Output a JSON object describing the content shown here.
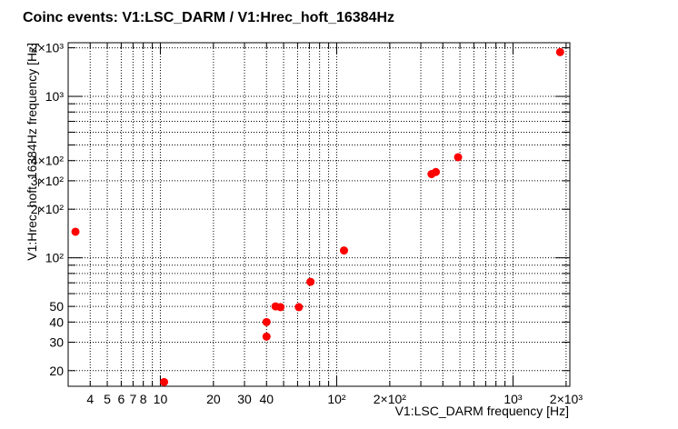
{
  "chart_data": {
    "type": "scatter",
    "title": "Coinc events: V1:LSC_DARM / V1:Hrec_hoft_16384Hz",
    "xlabel": "V1:LSC_DARM frequency [Hz]",
    "ylabel": "V1:Hrec_hoft_16384Hz frequency [Hz]",
    "xscale": "log",
    "yscale": "log",
    "xlim": [
      3.0,
      2100
    ],
    "ylim": [
      16,
      2150
    ],
    "grid": true,
    "x_tick_labels": [
      "4",
      "5",
      "6",
      "7",
      "8",
      "10",
      "20",
      "30",
      "40",
      "10²",
      "2×10²",
      "10³",
      "2×10³"
    ],
    "y_tick_labels": [
      "20",
      "30",
      "40",
      "50",
      "10²",
      "2×10²",
      "3×10²",
      "4×10²",
      "10³",
      "2×10³"
    ],
    "point_color": "#ff0000",
    "points": [
      {
        "x": 3.3,
        "y": 145
      },
      {
        "x": 10.5,
        "y": 17
      },
      {
        "x": 40,
        "y": 40
      },
      {
        "x": 40,
        "y": 32.5
      },
      {
        "x": 45,
        "y": 50
      },
      {
        "x": 48,
        "y": 49.5
      },
      {
        "x": 61,
        "y": 49.5
      },
      {
        "x": 71,
        "y": 71
      },
      {
        "x": 110,
        "y": 111
      },
      {
        "x": 345,
        "y": 330
      },
      {
        "x": 365,
        "y": 340
      },
      {
        "x": 488,
        "y": 420
      },
      {
        "x": 1850,
        "y": 1880
      }
    ]
  }
}
